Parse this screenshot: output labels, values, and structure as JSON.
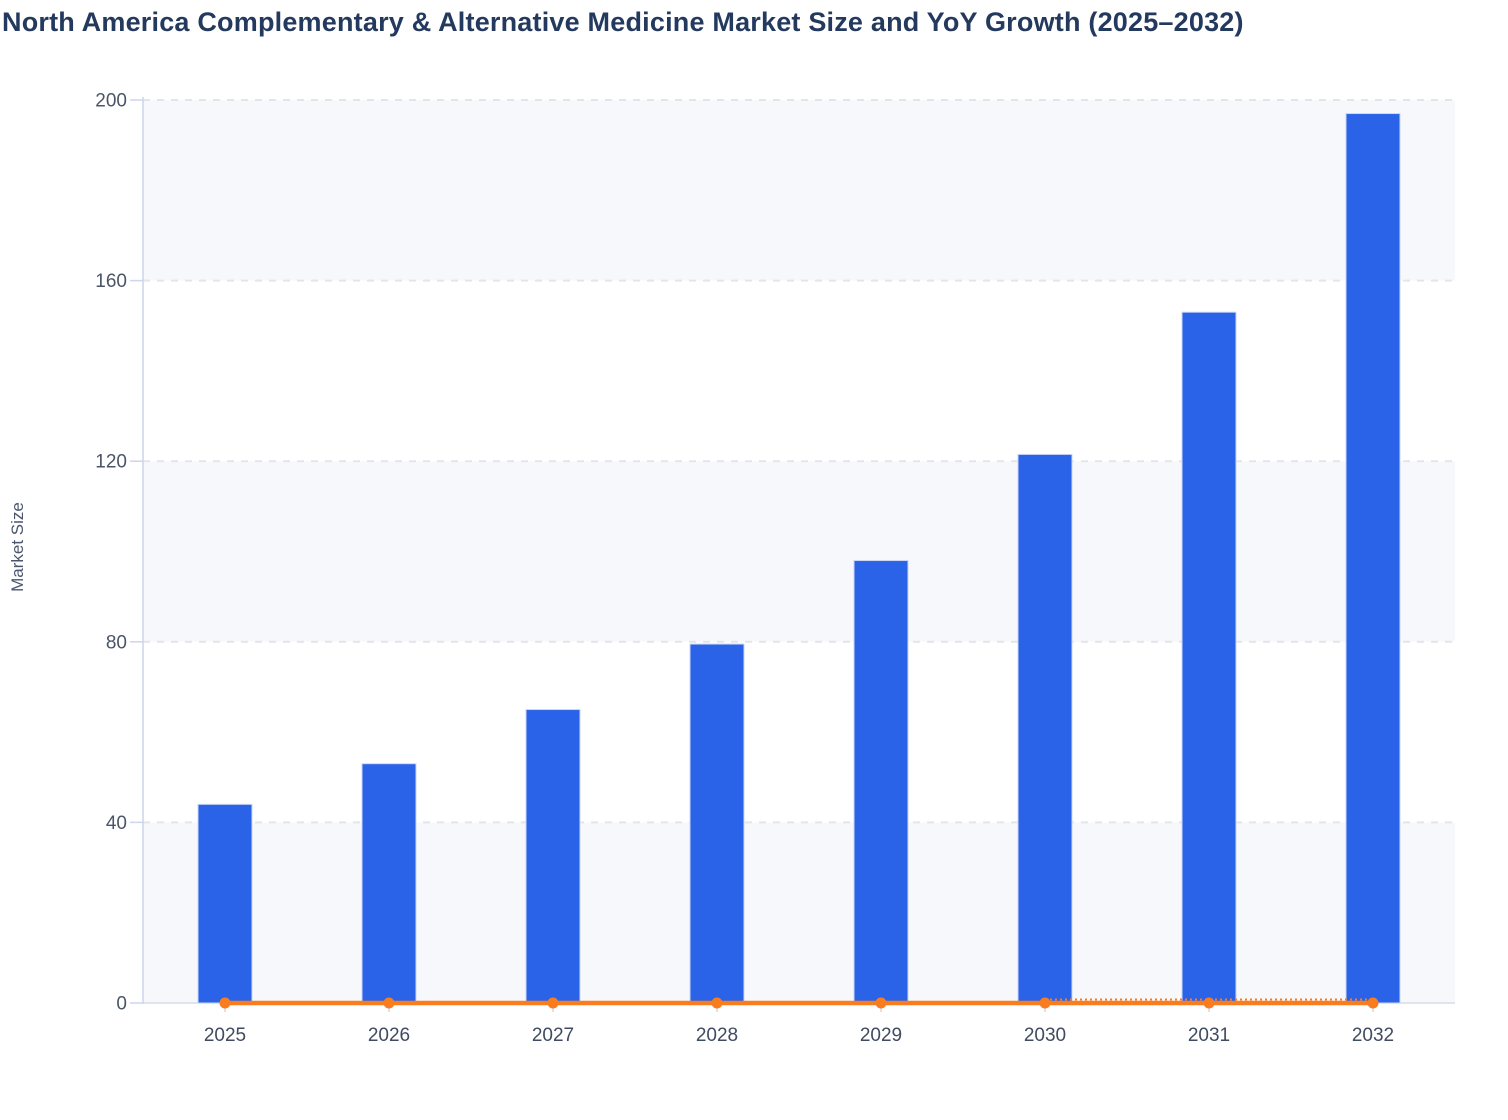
{
  "title": "North America Complementary & Alternative Medicine Market Size and YoY Growth (2025–2032)",
  "colors": {
    "bar_fill": "#2a63e8",
    "bar_stroke": "#c9d7f6",
    "line_orange": "#f97c1e",
    "title_text": "#24395e",
    "axis_title_text": "#49566e",
    "y_tick_text": "#4b5568",
    "x_tick_text": "#3f4b60",
    "gridline": "#e2e5ea",
    "axis_line": "#ccd6ec",
    "baseline": "#d5dcea",
    "plot_band": "#f7f8fb",
    "background": "#ffffff"
  },
  "chart_data": {
    "type": "bar",
    "title": "North America Complementary & Alternative Medicine Market Size and YoY Growth (2025–2032)",
    "categories": [
      "2025",
      "2026",
      "2027",
      "2028",
      "2029",
      "2030",
      "2031",
      "2032"
    ],
    "series": [
      {
        "name": "Market Size",
        "type": "bar",
        "values": [
          44,
          53,
          65,
          79.5,
          98,
          121.5,
          153,
          197
        ]
      },
      {
        "name": "YoY Growth",
        "type": "line",
        "values": [
          0,
          0,
          0,
          0,
          0,
          0,
          0,
          0
        ],
        "marker": "circle",
        "dotted_overlay": {
          "from": "2030",
          "to": "2032"
        }
      }
    ],
    "xlabel": "",
    "ylabel": "Market Size",
    "ylim": [
      0,
      200
    ],
    "yticks": [
      0,
      40,
      80,
      120,
      160,
      200
    ],
    "grid": "dashed-horizontal",
    "plot_bands": [
      [
        0,
        40
      ],
      [
        80,
        120
      ],
      [
        160,
        200
      ]
    ],
    "legend_position": "none"
  }
}
